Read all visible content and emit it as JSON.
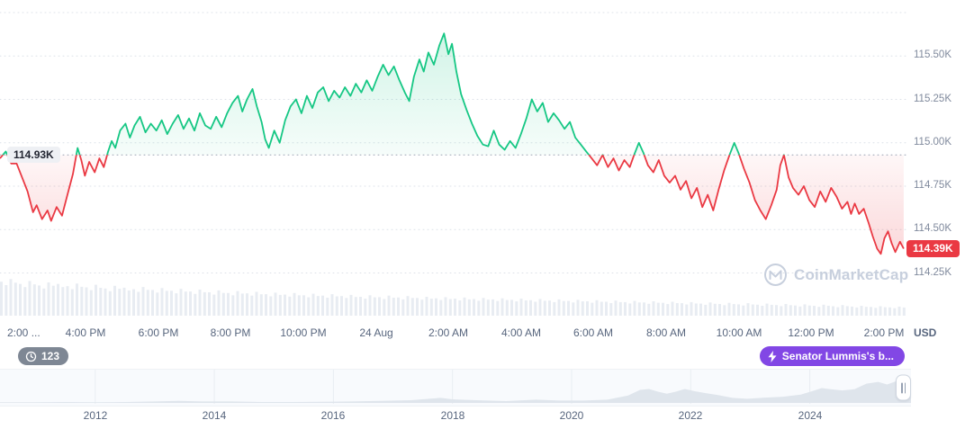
{
  "y_axis": {
    "labels": [
      "115.50K",
      "115.25K",
      "115.00K",
      "114.75K",
      "114.50K",
      "114.25K"
    ],
    "unit": "USD"
  },
  "x_axis": {
    "labels": [
      "2:00 ...",
      "4:00 PM",
      "6:00 PM",
      "8:00 PM",
      "10:00 PM",
      "24 Aug",
      "2:00 AM",
      "4:00 AM",
      "6:00 AM",
      "8:00 AM",
      "10:00 AM",
      "12:00 PM",
      "2:00 PM"
    ]
  },
  "baseline_label": "114.93K",
  "price_badge": "114.39K",
  "event_badges": {
    "count": "123",
    "news": "Senator Lummis's b..."
  },
  "watermark": {
    "text": "CoinMarketCap"
  },
  "colors": {
    "up": "#16c784",
    "down": "#ea3943",
    "grid": "#dce1e8",
    "baseline": "#9aa4b4",
    "volume": "#e8ecf2",
    "axis_text": "#808a9d",
    "purple": "#8247e5",
    "history_fill": "#dfe5ec"
  },
  "chart_data": {
    "type": "line",
    "baseline": 114.93,
    "last_price": 114.39,
    "ylim": [
      114.2,
      115.75
    ],
    "y_ticks": [
      115.5,
      115.25,
      115.0,
      114.75,
      114.5,
      114.25
    ],
    "x_unit": "hours since 2:00 PM (23 Aug), ticks every 2h through 2:00 PM (24 Aug)",
    "points": [
      [
        -0.36,
        114.91
      ],
      [
        -0.2,
        114.95
      ],
      [
        -0.05,
        114.88
      ],
      [
        0.1,
        114.88
      ],
      [
        0.25,
        114.8
      ],
      [
        0.4,
        114.72
      ],
      [
        0.55,
        114.6
      ],
      [
        0.65,
        114.64
      ],
      [
        0.8,
        114.56
      ],
      [
        0.95,
        114.61
      ],
      [
        1.05,
        114.55
      ],
      [
        1.2,
        114.63
      ],
      [
        1.35,
        114.58
      ],
      [
        1.5,
        114.7
      ],
      [
        1.65,
        114.82
      ],
      [
        1.78,
        114.97
      ],
      [
        1.88,
        114.9
      ],
      [
        1.98,
        114.81
      ],
      [
        2.1,
        114.89
      ],
      [
        2.25,
        114.83
      ],
      [
        2.38,
        114.91
      ],
      [
        2.5,
        114.86
      ],
      [
        2.62,
        114.95
      ],
      [
        2.72,
        115.01
      ],
      [
        2.82,
        114.97
      ],
      [
        2.95,
        115.07
      ],
      [
        3.1,
        115.11
      ],
      [
        3.22,
        115.03
      ],
      [
        3.35,
        115.1
      ],
      [
        3.5,
        115.15
      ],
      [
        3.65,
        115.06
      ],
      [
        3.8,
        115.11
      ],
      [
        3.95,
        115.07
      ],
      [
        4.1,
        115.13
      ],
      [
        4.25,
        115.05
      ],
      [
        4.4,
        115.11
      ],
      [
        4.55,
        115.16
      ],
      [
        4.7,
        115.08
      ],
      [
        4.85,
        115.14
      ],
      [
        5.0,
        115.07
      ],
      [
        5.15,
        115.17
      ],
      [
        5.3,
        115.1
      ],
      [
        5.45,
        115.08
      ],
      [
        5.6,
        115.15
      ],
      [
        5.75,
        115.09
      ],
      [
        5.9,
        115.17
      ],
      [
        6.05,
        115.23
      ],
      [
        6.2,
        115.27
      ],
      [
        6.32,
        115.18
      ],
      [
        6.45,
        115.25
      ],
      [
        6.6,
        115.31
      ],
      [
        6.72,
        115.21
      ],
      [
        6.85,
        115.12
      ],
      [
        6.95,
        115.02
      ],
      [
        7.05,
        114.97
      ],
      [
        7.2,
        115.07
      ],
      [
        7.35,
        115.0
      ],
      [
        7.5,
        115.13
      ],
      [
        7.65,
        115.21
      ],
      [
        7.8,
        115.25
      ],
      [
        7.95,
        115.17
      ],
      [
        8.1,
        115.27
      ],
      [
        8.25,
        115.2
      ],
      [
        8.4,
        115.29
      ],
      [
        8.55,
        115.32
      ],
      [
        8.7,
        115.24
      ],
      [
        8.85,
        115.3
      ],
      [
        9.0,
        115.26
      ],
      [
        9.15,
        115.32
      ],
      [
        9.3,
        115.27
      ],
      [
        9.45,
        115.34
      ],
      [
        9.6,
        115.29
      ],
      [
        9.75,
        115.36
      ],
      [
        9.9,
        115.3
      ],
      [
        10.05,
        115.38
      ],
      [
        10.2,
        115.45
      ],
      [
        10.35,
        115.39
      ],
      [
        10.5,
        115.44
      ],
      [
        10.65,
        115.36
      ],
      [
        10.8,
        115.29
      ],
      [
        10.92,
        115.24
      ],
      [
        11.05,
        115.38
      ],
      [
        11.2,
        115.48
      ],
      [
        11.32,
        115.41
      ],
      [
        11.45,
        115.52
      ],
      [
        11.6,
        115.45
      ],
      [
        11.75,
        115.56
      ],
      [
        11.88,
        115.63
      ],
      [
        12.0,
        115.51
      ],
      [
        12.1,
        115.57
      ],
      [
        12.22,
        115.41
      ],
      [
        12.35,
        115.28
      ],
      [
        12.5,
        115.19
      ],
      [
        12.65,
        115.11
      ],
      [
        12.8,
        115.04
      ],
      [
        12.95,
        114.99
      ],
      [
        13.1,
        114.98
      ],
      [
        13.25,
        115.07
      ],
      [
        13.4,
        114.99
      ],
      [
        13.55,
        114.96
      ],
      [
        13.7,
        115.01
      ],
      [
        13.85,
        114.97
      ],
      [
        14.0,
        115.05
      ],
      [
        14.15,
        115.14
      ],
      [
        14.3,
        115.25
      ],
      [
        14.45,
        115.18
      ],
      [
        14.6,
        115.23
      ],
      [
        14.75,
        115.12
      ],
      [
        14.9,
        115.17
      ],
      [
        15.05,
        115.13
      ],
      [
        15.2,
        115.08
      ],
      [
        15.35,
        115.12
      ],
      [
        15.5,
        115.03
      ],
      [
        15.65,
        114.99
      ],
      [
        15.8,
        114.95
      ],
      [
        15.95,
        114.91
      ],
      [
        16.1,
        114.87
      ],
      [
        16.25,
        114.93
      ],
      [
        16.4,
        114.86
      ],
      [
        16.55,
        114.91
      ],
      [
        16.7,
        114.84
      ],
      [
        16.85,
        114.9
      ],
      [
        17.0,
        114.86
      ],
      [
        17.12,
        114.93
      ],
      [
        17.25,
        115.0
      ],
      [
        17.38,
        114.94
      ],
      [
        17.5,
        114.87
      ],
      [
        17.65,
        114.83
      ],
      [
        17.8,
        114.9
      ],
      [
        17.95,
        114.81
      ],
      [
        18.1,
        114.77
      ],
      [
        18.25,
        114.81
      ],
      [
        18.4,
        114.73
      ],
      [
        18.55,
        114.78
      ],
      [
        18.7,
        114.68
      ],
      [
        18.85,
        114.74
      ],
      [
        19.0,
        114.63
      ],
      [
        19.15,
        114.7
      ],
      [
        19.3,
        114.61
      ],
      [
        19.45,
        114.73
      ],
      [
        19.6,
        114.84
      ],
      [
        19.75,
        114.93
      ],
      [
        19.88,
        115.0
      ],
      [
        20.0,
        114.94
      ],
      [
        20.15,
        114.85
      ],
      [
        20.3,
        114.77
      ],
      [
        20.45,
        114.67
      ],
      [
        20.6,
        114.61
      ],
      [
        20.75,
        114.56
      ],
      [
        20.9,
        114.64
      ],
      [
        21.05,
        114.73
      ],
      [
        21.15,
        114.87
      ],
      [
        21.25,
        114.93
      ],
      [
        21.38,
        114.8
      ],
      [
        21.5,
        114.74
      ],
      [
        21.65,
        114.7
      ],
      [
        21.8,
        114.75
      ],
      [
        21.95,
        114.67
      ],
      [
        22.1,
        114.63
      ],
      [
        22.25,
        114.72
      ],
      [
        22.4,
        114.66
      ],
      [
        22.55,
        114.74
      ],
      [
        22.7,
        114.69
      ],
      [
        22.85,
        114.62
      ],
      [
        23.0,
        114.66
      ],
      [
        23.1,
        114.59
      ],
      [
        23.2,
        114.65
      ],
      [
        23.32,
        114.59
      ],
      [
        23.45,
        114.62
      ],
      [
        23.58,
        114.54
      ],
      [
        23.7,
        114.46
      ],
      [
        23.82,
        114.39
      ],
      [
        23.92,
        114.36
      ],
      [
        24.02,
        114.45
      ],
      [
        24.12,
        114.49
      ],
      [
        24.22,
        114.42
      ],
      [
        24.32,
        114.37
      ],
      [
        24.45,
        114.43
      ],
      [
        24.55,
        114.39
      ]
    ],
    "volume_norm": [
      0.9,
      0.97,
      0.84,
      0.92,
      0.8,
      0.88,
      0.84,
      0.78,
      0.85,
      0.75,
      0.82,
      0.72,
      0.79,
      0.74,
      0.7,
      0.76,
      0.68,
      0.73,
      0.66,
      0.71,
      0.64,
      0.69,
      0.62,
      0.67,
      0.6,
      0.65,
      0.59,
      0.63,
      0.57,
      0.61,
      0.56,
      0.6,
      0.54,
      0.58,
      0.53,
      0.57,
      0.52,
      0.55,
      0.5,
      0.54,
      0.49,
      0.53,
      0.48,
      0.52,
      0.47,
      0.5,
      0.46,
      0.49,
      0.45,
      0.48,
      0.44,
      0.47,
      0.43,
      0.46,
      0.42,
      0.45,
      0.41,
      0.44,
      0.4,
      0.43,
      0.39,
      0.42,
      0.38,
      0.41,
      0.37,
      0.4,
      0.36,
      0.39,
      0.35,
      0.38,
      0.34,
      0.37,
      0.33,
      0.36,
      0.32,
      0.35,
      0.31,
      0.34,
      0.3,
      0.33,
      0.29,
      0.32,
      0.28,
      0.31,
      0.27,
      0.3,
      0.26,
      0.29,
      0.25,
      0.28,
      0.24,
      0.26,
      0.23,
      0.25,
      0.22,
      0.24
    ],
    "history": {
      "domain": [
        2010.4,
        2025.7
      ],
      "year_labels": [
        2012,
        2014,
        2016,
        2018,
        2020,
        2022,
        2024
      ],
      "points": [
        [
          2010.4,
          0.02
        ],
        [
          2011.0,
          0.02
        ],
        [
          2011.5,
          0.03
        ],
        [
          2012.0,
          0.02
        ],
        [
          2012.5,
          0.03
        ],
        [
          2013.0,
          0.05
        ],
        [
          2013.4,
          0.07
        ],
        [
          2013.8,
          0.05
        ],
        [
          2014.3,
          0.05
        ],
        [
          2014.8,
          0.03
        ],
        [
          2015.3,
          0.03
        ],
        [
          2015.8,
          0.04
        ],
        [
          2016.3,
          0.05
        ],
        [
          2016.8,
          0.07
        ],
        [
          2017.3,
          0.09
        ],
        [
          2017.8,
          0.17
        ],
        [
          2018.0,
          0.12
        ],
        [
          2018.4,
          0.09
        ],
        [
          2018.9,
          0.06
        ],
        [
          2019.4,
          0.11
        ],
        [
          2019.8,
          0.08
        ],
        [
          2020.2,
          0.08
        ],
        [
          2020.6,
          0.11
        ],
        [
          2020.95,
          0.25
        ],
        [
          2021.15,
          0.44
        ],
        [
          2021.3,
          0.47
        ],
        [
          2021.45,
          0.38
        ],
        [
          2021.6,
          0.31
        ],
        [
          2021.75,
          0.38
        ],
        [
          2021.9,
          0.47
        ],
        [
          2022.05,
          0.4
        ],
        [
          2022.25,
          0.33
        ],
        [
          2022.45,
          0.27
        ],
        [
          2022.7,
          0.17
        ],
        [
          2022.95,
          0.14
        ],
        [
          2023.25,
          0.18
        ],
        [
          2023.55,
          0.21
        ],
        [
          2023.85,
          0.28
        ],
        [
          2024.05,
          0.4
        ],
        [
          2024.2,
          0.5
        ],
        [
          2024.35,
          0.46
        ],
        [
          2024.55,
          0.42
        ],
        [
          2024.75,
          0.46
        ],
        [
          2024.95,
          0.65
        ],
        [
          2025.15,
          0.71
        ],
        [
          2025.3,
          0.62
        ],
        [
          2025.45,
          0.73
        ],
        [
          2025.6,
          0.84
        ],
        [
          2025.7,
          0.8
        ]
      ]
    }
  }
}
